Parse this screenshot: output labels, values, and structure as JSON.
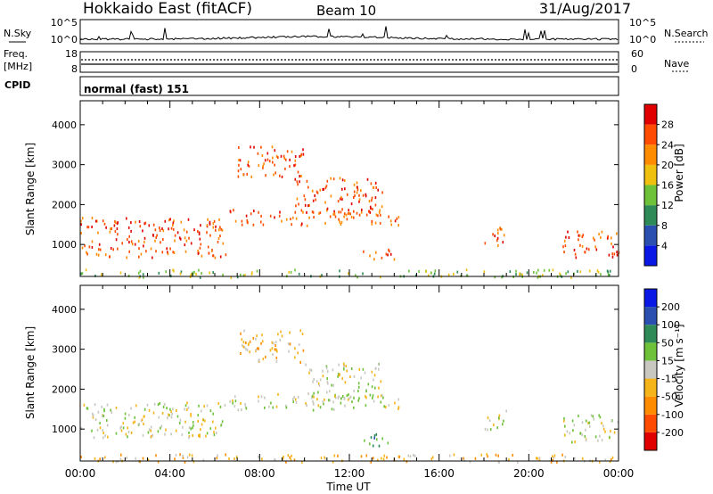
{
  "header": {
    "station": "Hokkaido East (fitACF)",
    "beam": "Beam 10",
    "date": "31/Aug/2017"
  },
  "sky_panel": {
    "left_label": "N.Sky",
    "right_label": "N.Search",
    "yticks": [
      "10^5",
      "10^0"
    ]
  },
  "freq_panel": {
    "left_label": "Freq.",
    "unit_label": "[MHz]",
    "left_ticks": [
      "18",
      "8"
    ],
    "right_label": "Nave",
    "right_ticks": [
      "60",
      "0"
    ]
  },
  "cpid_panel": {
    "label": "CPID",
    "program": "normal (fast) 151"
  },
  "colors": {
    "power": [
      "#0a18e6",
      "#2a4fb0",
      "#2e8b57",
      "#6dc23a",
      "#f0c010",
      "#ff8c00",
      "#ff4c00",
      "#e00000"
    ],
    "velocity": [
      "#e00000",
      "#ff4c00",
      "#ff8c00",
      "#f5b51a",
      "#c8c8c0",
      "#6dc23a",
      "#2e8b57",
      "#2a4fb0",
      "#0a18e6"
    ]
  },
  "chart_data": [
    {
      "type": "heatmap",
      "quantity": "Power",
      "ylabel": "Slant Range [km]",
      "ylim": [
        200,
        4600
      ],
      "yticks": [
        1000,
        2000,
        3000,
        4000
      ],
      "xlim": [
        0,
        24
      ],
      "xticks": [
        "00:00",
        "04:00",
        "08:00",
        "12:00",
        "16:00",
        "20:00",
        "00:00"
      ],
      "colorbar": {
        "label": "Power [dB]",
        "ticks": [
          "4",
          "8",
          "12",
          "16",
          "20",
          "24",
          "28"
        ]
      },
      "echo_regions": [
        {
          "t0": 0.0,
          "t1": 6.5,
          "r0": 700,
          "r1": 1700,
          "level": 6
        },
        {
          "t0": 6.5,
          "t1": 14.2,
          "r0": 1500,
          "r1": 1900,
          "level": 6
        },
        {
          "t0": 7.0,
          "t1": 10.0,
          "r0": 2700,
          "r1": 3500,
          "level": 6
        },
        {
          "t0": 9.5,
          "t1": 13.5,
          "r0": 1800,
          "r1": 2700,
          "level": 6
        },
        {
          "t0": 12.5,
          "t1": 14.0,
          "r0": 600,
          "r1": 900,
          "level": 6
        },
        {
          "t0": 18.0,
          "t1": 19.0,
          "r0": 1000,
          "r1": 1500,
          "level": 6
        },
        {
          "t0": 21.5,
          "t1": 24.0,
          "r0": 700,
          "r1": 1400,
          "level": 6
        },
        {
          "t0": 0.0,
          "t1": 24.0,
          "r0": 200,
          "r1": 400,
          "level": 3
        }
      ]
    },
    {
      "type": "heatmap",
      "quantity": "Velocity",
      "ylabel": "Slant Range [km]",
      "ylim": [
        200,
        4600
      ],
      "yticks": [
        1000,
        2000,
        3000,
        4000
      ],
      "xlim": [
        0,
        24
      ],
      "xticks": [
        "00:00",
        "04:00",
        "08:00",
        "12:00",
        "16:00",
        "20:00",
        "00:00"
      ],
      "xlabel": "Time UT",
      "colorbar": {
        "label": "Velocity [m s⁻¹]",
        "ticks": [
          "-200",
          "-100",
          "-50",
          "-15",
          "15",
          "50",
          "100",
          "200"
        ]
      },
      "echo_regions": [
        {
          "t0": 0.0,
          "t1": 6.5,
          "r0": 800,
          "r1": 1700,
          "level": 4
        },
        {
          "t0": 6.5,
          "t1": 14.2,
          "r0": 1500,
          "r1": 1900,
          "level": 4
        },
        {
          "t0": 7.0,
          "t1": 10.0,
          "r0": 2700,
          "r1": 3500,
          "level": 3
        },
        {
          "t0": 10.0,
          "t1": 13.5,
          "r0": 1800,
          "r1": 2700,
          "level": 4
        },
        {
          "t0": 12.5,
          "t1": 14.0,
          "r0": 600,
          "r1": 900,
          "level": 6
        },
        {
          "t0": 18.0,
          "t1": 19.0,
          "r0": 1000,
          "r1": 1500,
          "level": 4
        },
        {
          "t0": 21.5,
          "t1": 24.0,
          "r0": 700,
          "r1": 1400,
          "level": 4
        },
        {
          "t0": 0.0,
          "t1": 24.0,
          "r0": 200,
          "r1": 400,
          "level": 3
        }
      ]
    }
  ]
}
